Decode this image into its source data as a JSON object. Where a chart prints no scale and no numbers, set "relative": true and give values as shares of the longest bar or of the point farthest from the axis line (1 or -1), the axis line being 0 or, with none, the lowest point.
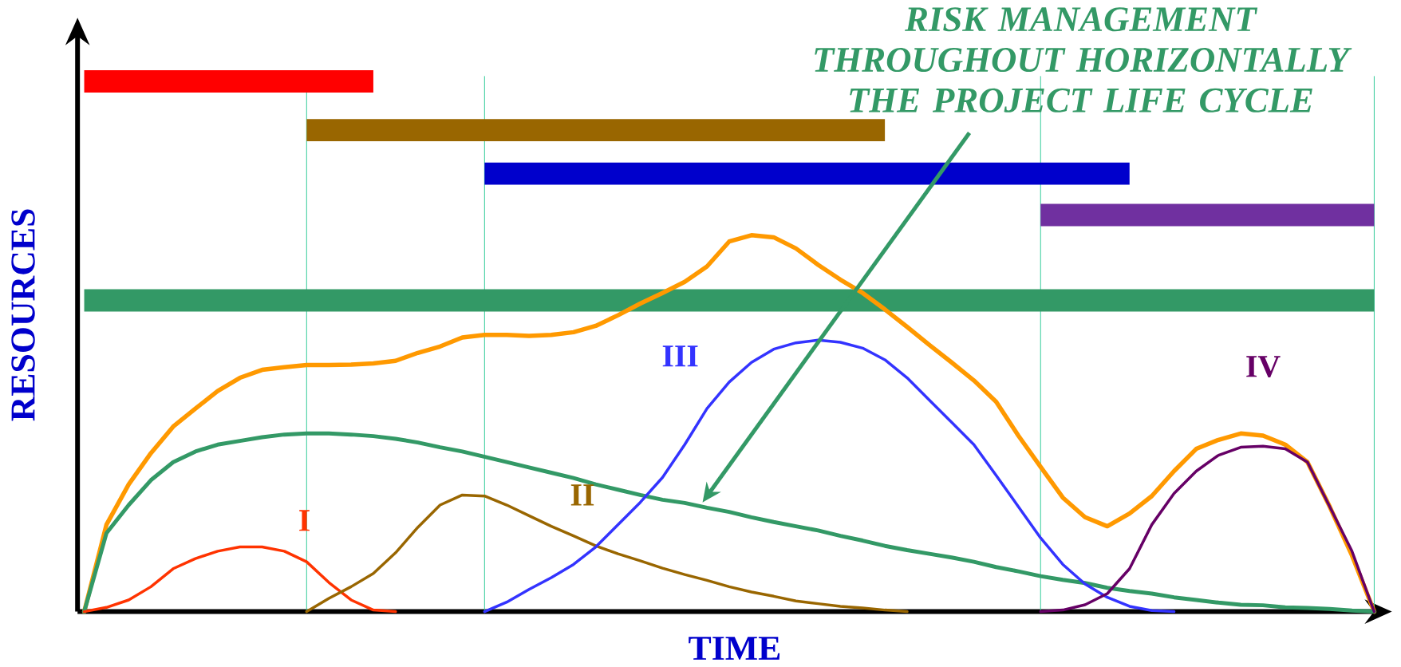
{
  "chart_data": {
    "type": "line",
    "relative": true,
    "grid": "x",
    "xlabel": "TIME",
    "ylabel": "RESOURCES",
    "categories": [
      null,
      null,
      null,
      null,
      null,
      null,
      null,
      null,
      null,
      null,
      null,
      null,
      null,
      null,
      null,
      null,
      null,
      null,
      null,
      null,
      null,
      null,
      null,
      null,
      null,
      null,
      null,
      null,
      null,
      null,
      null,
      null,
      null,
      null,
      null,
      null,
      null,
      null,
      null,
      null,
      null,
      null,
      null,
      null,
      null,
      null,
      null,
      null,
      null,
      null,
      null,
      null,
      null,
      null,
      null,
      null,
      null,
      null,
      null
    ],
    "series": [
      {
        "color": "#ff0000",
        "values": [
          1,
          1,
          1,
          1,
          1,
          1,
          1,
          1,
          1,
          1,
          1,
          1,
          1,
          1,
          null,
          null,
          null,
          null,
          null,
          null,
          null,
          null,
          null,
          null,
          null,
          null,
          null,
          null,
          null,
          null,
          null,
          null,
          null,
          null,
          null,
          null,
          null,
          null,
          null,
          null,
          null,
          null,
          null,
          null,
          null,
          null,
          null,
          null,
          null,
          null,
          null,
          null,
          null,
          null,
          null,
          null,
          null,
          null,
          null
        ]
      },
      {
        "color": "#996600",
        "values": [
          null,
          null,
          null,
          null,
          null,
          null,
          null,
          null,
          null,
          null,
          0.908,
          0.908,
          0.908,
          0.908,
          0.908,
          0.908,
          0.908,
          0.908,
          0.908,
          0.908,
          0.908,
          0.908,
          0.908,
          0.908,
          0.908,
          0.908,
          0.908,
          0.908,
          0.908,
          0.908,
          0.908,
          0.908,
          0.908,
          0.908,
          0.908,
          0.908,
          0.908,
          null,
          null,
          null,
          null,
          null,
          null,
          null,
          null,
          null,
          null,
          null,
          null,
          null,
          null,
          null,
          null,
          null,
          null,
          null,
          null,
          null,
          null
        ]
      },
      {
        "color": "#0000cc",
        "values": [
          null,
          null,
          null,
          null,
          null,
          null,
          null,
          null,
          null,
          null,
          null,
          null,
          null,
          null,
          null,
          null,
          null,
          null,
          0.826,
          0.826,
          0.826,
          0.826,
          0.826,
          0.826,
          0.826,
          0.826,
          0.826,
          0.826,
          0.826,
          0.826,
          0.826,
          0.826,
          0.826,
          0.826,
          0.826,
          0.826,
          0.826,
          0.826,
          0.826,
          0.826,
          0.826,
          0.826,
          0.826,
          0.826,
          0.826,
          0.826,
          0.826,
          0.826,
          null,
          null,
          null,
          null,
          null,
          null,
          null,
          null,
          null,
          null,
          null
        ]
      },
      {
        "color": "#7030a0",
        "values": [
          null,
          null,
          null,
          null,
          null,
          null,
          null,
          null,
          null,
          null,
          null,
          null,
          null,
          null,
          null,
          null,
          null,
          null,
          null,
          null,
          null,
          null,
          null,
          null,
          null,
          null,
          null,
          null,
          null,
          null,
          null,
          null,
          null,
          null,
          null,
          null,
          null,
          null,
          null,
          null,
          null,
          null,
          null,
          0.748,
          0.748,
          0.748,
          0.748,
          0.748,
          0.748,
          0.748,
          0.748,
          0.748,
          0.748,
          0.748,
          0.748,
          0.748,
          0.748,
          0.748,
          0.748
        ]
      },
      {
        "color": "#339966",
        "values": [
          0.587,
          0.587,
          0.587,
          0.587,
          0.587,
          0.587,
          0.587,
          0.587,
          0.587,
          0.587,
          0.587,
          0.587,
          0.587,
          0.587,
          0.587,
          0.587,
          0.587,
          0.587,
          0.587,
          0.587,
          0.587,
          0.587,
          0.587,
          0.587,
          0.587,
          0.587,
          0.587,
          0.587,
          0.587,
          0.587,
          0.587,
          0.587,
          0.587,
          0.587,
          0.587,
          0.587,
          0.587,
          0.587,
          0.587,
          0.587,
          0.587,
          0.587,
          0.587,
          0.587,
          0.587,
          0.587,
          0.587,
          0.587,
          0.587,
          0.587,
          0.587,
          0.587,
          0.587,
          0.587,
          0.587,
          0.587,
          0.587,
          0.587,
          0.587
        ]
      },
      {
        "color": "#ff9900",
        "values": [
          0,
          0.164,
          0.24,
          0.299,
          0.349,
          0.383,
          0.416,
          0.441,
          0.456,
          0.461,
          0.465,
          0.465,
          0.466,
          0.468,
          0.473,
          0.488,
          0.5,
          0.517,
          0.522,
          0.522,
          0.52,
          0.522,
          0.527,
          0.539,
          0.559,
          0.581,
          0.601,
          0.622,
          0.651,
          0.698,
          0.71,
          0.706,
          0.685,
          0.654,
          0.626,
          0.601,
          0.57,
          0.537,
          0.503,
          0.47,
          0.436,
          0.396,
          0.332,
          0.273,
          0.215,
          0.178,
          0.161,
          0.185,
          0.218,
          0.265,
          0.307,
          0.324,
          0.336,
          0.332,
          0.315,
          0.282,
          0.198,
          0.106,
          0
        ]
      },
      {
        "color": "#339966",
        "values": [
          0,
          0.148,
          0.201,
          0.248,
          0.282,
          0.302,
          0.315,
          0.322,
          0.329,
          0.334,
          0.336,
          0.336,
          0.334,
          0.331,
          0.326,
          0.319,
          0.31,
          0.302,
          0.292,
          0.282,
          0.272,
          0.262,
          0.252,
          0.24,
          0.23,
          0.22,
          0.211,
          0.205,
          0.196,
          0.188,
          0.178,
          0.169,
          0.161,
          0.153,
          0.143,
          0.134,
          0.124,
          0.116,
          0.109,
          0.102,
          0.094,
          0.084,
          0.076,
          0.067,
          0.06,
          0.054,
          0.045,
          0.039,
          0.034,
          0.027,
          0.022,
          0.017,
          0.013,
          0.012,
          0.008,
          0.007,
          0.005,
          0.002,
          0
        ]
      },
      {
        "name": "I",
        "color": "#ff3300",
        "values": [
          0,
          0.008,
          0.022,
          0.047,
          0.081,
          0.1,
          0.114,
          0.122,
          0.122,
          0.114,
          0.094,
          0.055,
          0.022,
          0.003,
          0,
          null,
          null,
          null,
          null,
          null,
          null,
          null,
          null,
          null,
          null,
          null,
          null,
          null,
          null,
          null,
          null,
          null,
          null,
          null,
          null,
          null,
          null,
          null,
          null,
          null,
          null,
          null,
          null,
          null,
          null,
          null,
          null,
          null,
          null,
          null,
          null,
          null,
          null,
          null,
          null,
          null,
          null,
          null,
          null
        ]
      },
      {
        "name": "II",
        "color": "#996600",
        "values": [
          null,
          null,
          null,
          null,
          null,
          null,
          null,
          null,
          null,
          null,
          0,
          0.025,
          0.047,
          0.072,
          0.111,
          0.159,
          0.201,
          0.22,
          0.218,
          0.201,
          0.181,
          0.161,
          0.143,
          0.124,
          0.109,
          0.096,
          0.082,
          0.07,
          0.059,
          0.047,
          0.037,
          0.029,
          0.02,
          0.015,
          0.01,
          0.007,
          0.003,
          0,
          null,
          null,
          null,
          null,
          null,
          null,
          null,
          null,
          null,
          null,
          null,
          null,
          null,
          null,
          null,
          null,
          null,
          null,
          null,
          null,
          null
        ]
      },
      {
        "name": "III",
        "color": "#3333ff",
        "values": [
          null,
          null,
          null,
          null,
          null,
          null,
          null,
          null,
          null,
          null,
          null,
          null,
          null,
          null,
          null,
          null,
          null,
          null,
          0,
          0.018,
          0.042,
          0.064,
          0.089,
          0.122,
          0.164,
          0.206,
          0.253,
          0.315,
          0.383,
          0.433,
          0.47,
          0.495,
          0.507,
          0.512,
          0.508,
          0.497,
          0.475,
          0.441,
          0.399,
          0.357,
          0.315,
          0.257,
          0.198,
          0.139,
          0.089,
          0.052,
          0.027,
          0.01,
          0.002,
          0,
          null,
          null,
          null,
          null,
          null,
          null,
          null,
          null,
          null
        ]
      },
      {
        "name": "IV",
        "color": "#660066",
        "values": [
          null,
          null,
          null,
          null,
          null,
          null,
          null,
          null,
          null,
          null,
          null,
          null,
          null,
          null,
          null,
          null,
          null,
          null,
          null,
          null,
          null,
          null,
          null,
          null,
          null,
          null,
          null,
          null,
          null,
          null,
          null,
          null,
          null,
          null,
          null,
          null,
          null,
          null,
          null,
          null,
          null,
          null,
          null,
          0,
          0.003,
          0.013,
          0.034,
          0.081,
          0.164,
          0.223,
          0.265,
          0.295,
          0.31,
          0.312,
          0.307,
          0.282,
          0.198,
          0.114,
          0
        ]
      }
    ],
    "annotations": [
      "RISK MANAGEMENT THROUGHOUT HORIZONTALLY THE PROJECT LIFE CYCLE"
    ]
  }
}
